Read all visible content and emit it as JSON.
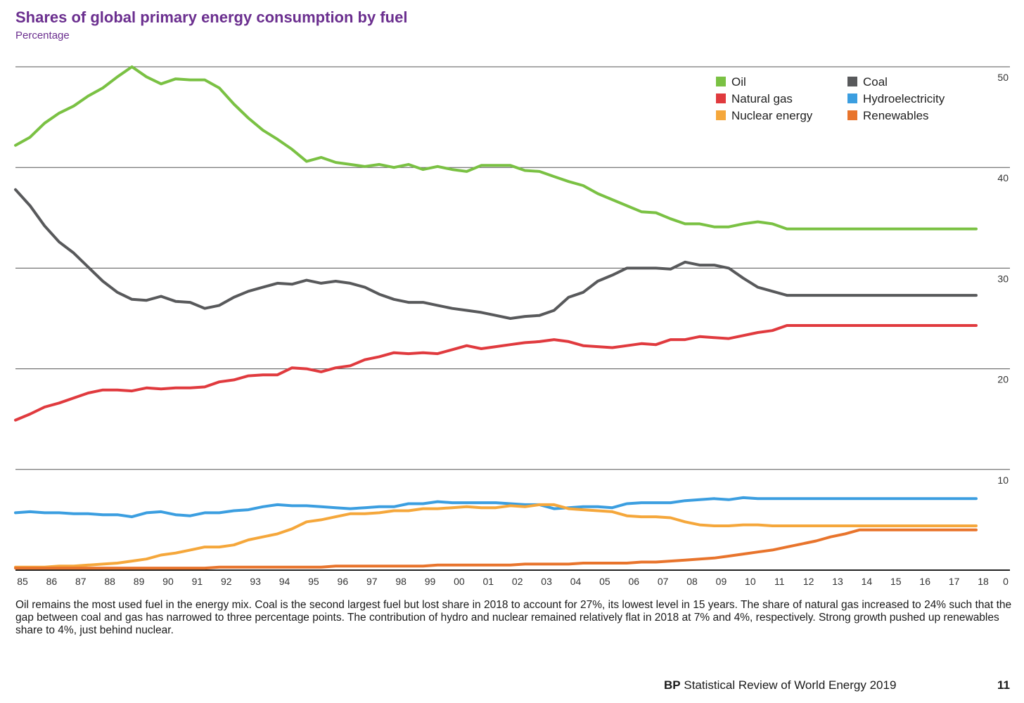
{
  "title": "Shares of global primary energy consumption by fuel",
  "subtitle": "Percentage",
  "caption": "Oil remains the most used fuel in the energy mix. Coal is the second largest fuel but lost share in 2018 to account for 27%, its lowest level in 15 years. The share of natural gas increased to 24% such that the gap between coal and gas has narrowed to three percentage points. The contribution of hydro and nuclear remained relatively flat in 2018 at 7% and 4%, respectively. Strong growth pushed up renewables share to 4%, just behind nuclear.",
  "footer": {
    "brand": "BP",
    "text": "Statistical Review of World Energy 2019",
    "page": "11"
  },
  "chart_data": {
    "type": "line",
    "x_tick_labels": [
      "85",
      "86",
      "87",
      "88",
      "89",
      "90",
      "91",
      "92",
      "93",
      "94",
      "95",
      "96",
      "97",
      "98",
      "99",
      "00",
      "01",
      "02",
      "03",
      "04",
      "05",
      "06",
      "07",
      "08",
      "09",
      "10",
      "11",
      "12",
      "13",
      "14",
      "15",
      "16",
      "17",
      "18"
    ],
    "x_extra_label": "0",
    "x": [
      1985,
      1985.5,
      1986,
      1986.5,
      1987,
      1987.5,
      1988,
      1988.5,
      1989,
      1989.5,
      1990,
      1990.5,
      1991,
      1991.5,
      1992,
      1992.5,
      1993,
      1993.5,
      1994,
      1994.5,
      1995,
      1995.5,
      1996,
      1996.5,
      1997,
      1997.5,
      1998,
      1998.5,
      1999,
      1999.5,
      2000,
      2000.5,
      2001,
      2001.5,
      2002,
      2002.5,
      2003,
      2003.5,
      2004,
      2004.5,
      2005,
      2005.5,
      2006,
      2006.5,
      2007,
      2007.5,
      2008,
      2008.5,
      2009,
      2009.5,
      2010,
      2010.5,
      2011,
      2011.5,
      2012,
      2012.5,
      2013,
      2013.5,
      2014,
      2014.5,
      2015,
      2015.5,
      2016,
      2016.5,
      2017,
      2017.5,
      2018
    ],
    "ylim": [
      0,
      50
    ],
    "y_ticks": [
      0,
      10,
      20,
      30,
      40,
      50
    ],
    "y_axis_side": "right",
    "grid": true,
    "legend_position": "top-right",
    "series": [
      {
        "name": "Oil",
        "color": "#7ac143",
        "values": [
          42.2,
          43.0,
          44.4,
          45.4,
          46.1,
          47.1,
          47.9,
          49.0,
          50.0,
          49.0,
          48.3,
          48.8,
          48.7,
          48.7,
          47.9,
          46.3,
          44.9,
          43.7,
          42.8,
          41.8,
          40.6,
          41.0,
          40.5,
          40.3,
          40.1,
          40.3,
          40.0,
          40.3,
          39.8,
          40.1,
          39.8,
          39.6,
          40.2,
          40.2,
          40.2,
          39.7,
          39.6,
          39.1,
          38.6,
          38.2,
          37.4,
          36.8,
          36.2,
          35.6,
          35.5,
          34.9,
          34.4,
          34.4,
          34.1,
          34.1,
          34.4,
          34.6,
          34.4,
          33.9,
          33.9,
          33.9,
          33.9,
          33.9,
          33.9,
          33.9,
          33.9,
          33.9,
          33.9,
          33.9,
          33.9,
          33.9,
          33.9
        ]
      },
      {
        "name": "Coal",
        "color": "#58595b",
        "values": [
          37.8,
          36.2,
          34.2,
          32.6,
          31.5,
          30.1,
          28.7,
          27.6,
          26.9,
          26.8,
          27.2,
          26.7,
          26.6,
          26.0,
          26.3,
          27.1,
          27.7,
          28.1,
          28.5,
          28.4,
          28.8,
          28.5,
          28.7,
          28.5,
          28.1,
          27.4,
          26.9,
          26.6,
          26.6,
          26.3,
          26.0,
          25.8,
          25.6,
          25.3,
          25.0,
          25.2,
          25.3,
          25.8,
          27.1,
          27.6,
          28.7,
          29.3,
          30.0,
          30.0,
          30.0,
          29.9,
          30.6,
          30.3,
          30.3,
          30.0,
          29.0,
          28.1,
          27.7,
          27.3,
          27.3,
          27.3,
          27.3,
          27.3,
          27.3,
          27.3,
          27.3,
          27.3,
          27.3,
          27.3,
          27.3,
          27.3,
          27.3
        ]
      },
      {
        "name": "Natural gas",
        "color": "#e03a3e",
        "values": [
          14.9,
          15.5,
          16.2,
          16.6,
          17.1,
          17.6,
          17.9,
          17.9,
          17.8,
          18.1,
          18.0,
          18.1,
          18.1,
          18.2,
          18.7,
          18.9,
          19.3,
          19.4,
          19.4,
          20.1,
          20.0,
          19.7,
          20.1,
          20.3,
          20.9,
          21.2,
          21.6,
          21.5,
          21.6,
          21.5,
          21.9,
          22.3,
          22.0,
          22.2,
          22.4,
          22.6,
          22.7,
          22.9,
          22.7,
          22.3,
          22.2,
          22.1,
          22.3,
          22.5,
          22.4,
          22.9,
          22.9,
          23.2,
          23.1,
          23.0,
          23.3,
          23.6,
          23.8,
          24.3,
          24.3,
          24.3,
          24.3,
          24.3,
          24.3,
          24.3,
          24.3,
          24.3,
          24.3,
          24.3,
          24.3,
          24.3,
          24.3
        ]
      },
      {
        "name": "Hydroelectricity",
        "color": "#3b9ee0",
        "values": [
          5.7,
          5.8,
          5.7,
          5.7,
          5.6,
          5.6,
          5.5,
          5.5,
          5.3,
          5.7,
          5.8,
          5.5,
          5.4,
          5.7,
          5.7,
          5.9,
          6.0,
          6.3,
          6.5,
          6.4,
          6.4,
          6.3,
          6.2,
          6.1,
          6.2,
          6.3,
          6.3,
          6.6,
          6.6,
          6.8,
          6.7,
          6.7,
          6.7,
          6.7,
          6.6,
          6.5,
          6.5,
          6.1,
          6.2,
          6.3,
          6.3,
          6.2,
          6.6,
          6.7,
          6.7,
          6.7,
          6.9,
          7.0,
          7.1,
          7.0,
          7.2,
          7.1,
          7.1,
          7.1,
          7.1,
          7.1,
          7.1,
          7.1,
          7.1,
          7.1,
          7.1,
          7.1,
          7.1,
          7.1,
          7.1,
          7.1,
          7.1
        ]
      },
      {
        "name": "Nuclear energy",
        "color": "#f5a73b",
        "values": [
          0.3,
          0.3,
          0.3,
          0.4,
          0.4,
          0.5,
          0.6,
          0.7,
          0.9,
          1.1,
          1.5,
          1.7,
          2.0,
          2.3,
          2.3,
          2.5,
          3.0,
          3.3,
          3.6,
          4.1,
          4.8,
          5.0,
          5.3,
          5.6,
          5.6,
          5.7,
          5.9,
          5.9,
          6.1,
          6.1,
          6.2,
          6.3,
          6.2,
          6.2,
          6.4,
          6.3,
          6.5,
          6.5,
          6.1,
          6.0,
          5.9,
          5.8,
          5.4,
          5.3,
          5.3,
          5.2,
          4.8,
          4.5,
          4.4,
          4.4,
          4.5,
          4.5,
          4.4,
          4.4,
          4.4,
          4.4,
          4.4,
          4.4,
          4.4,
          4.4,
          4.4,
          4.4,
          4.4,
          4.4,
          4.4,
          4.4,
          4.4
        ]
      },
      {
        "name": "Renewables",
        "color": "#e8742c",
        "values": [
          0.2,
          0.2,
          0.2,
          0.2,
          0.2,
          0.2,
          0.2,
          0.2,
          0.2,
          0.2,
          0.2,
          0.2,
          0.2,
          0.2,
          0.3,
          0.3,
          0.3,
          0.3,
          0.3,
          0.3,
          0.3,
          0.3,
          0.4,
          0.4,
          0.4,
          0.4,
          0.4,
          0.4,
          0.4,
          0.5,
          0.5,
          0.5,
          0.5,
          0.5,
          0.5,
          0.6,
          0.6,
          0.6,
          0.6,
          0.7,
          0.7,
          0.7,
          0.7,
          0.8,
          0.8,
          0.9,
          1.0,
          1.1,
          1.2,
          1.4,
          1.6,
          1.8,
          2.0,
          2.3,
          2.6,
          2.9,
          3.3,
          3.6,
          4.0,
          4.0,
          4.0,
          4.0,
          4.0,
          4.0,
          4.0,
          4.0,
          4.0
        ]
      }
    ]
  }
}
